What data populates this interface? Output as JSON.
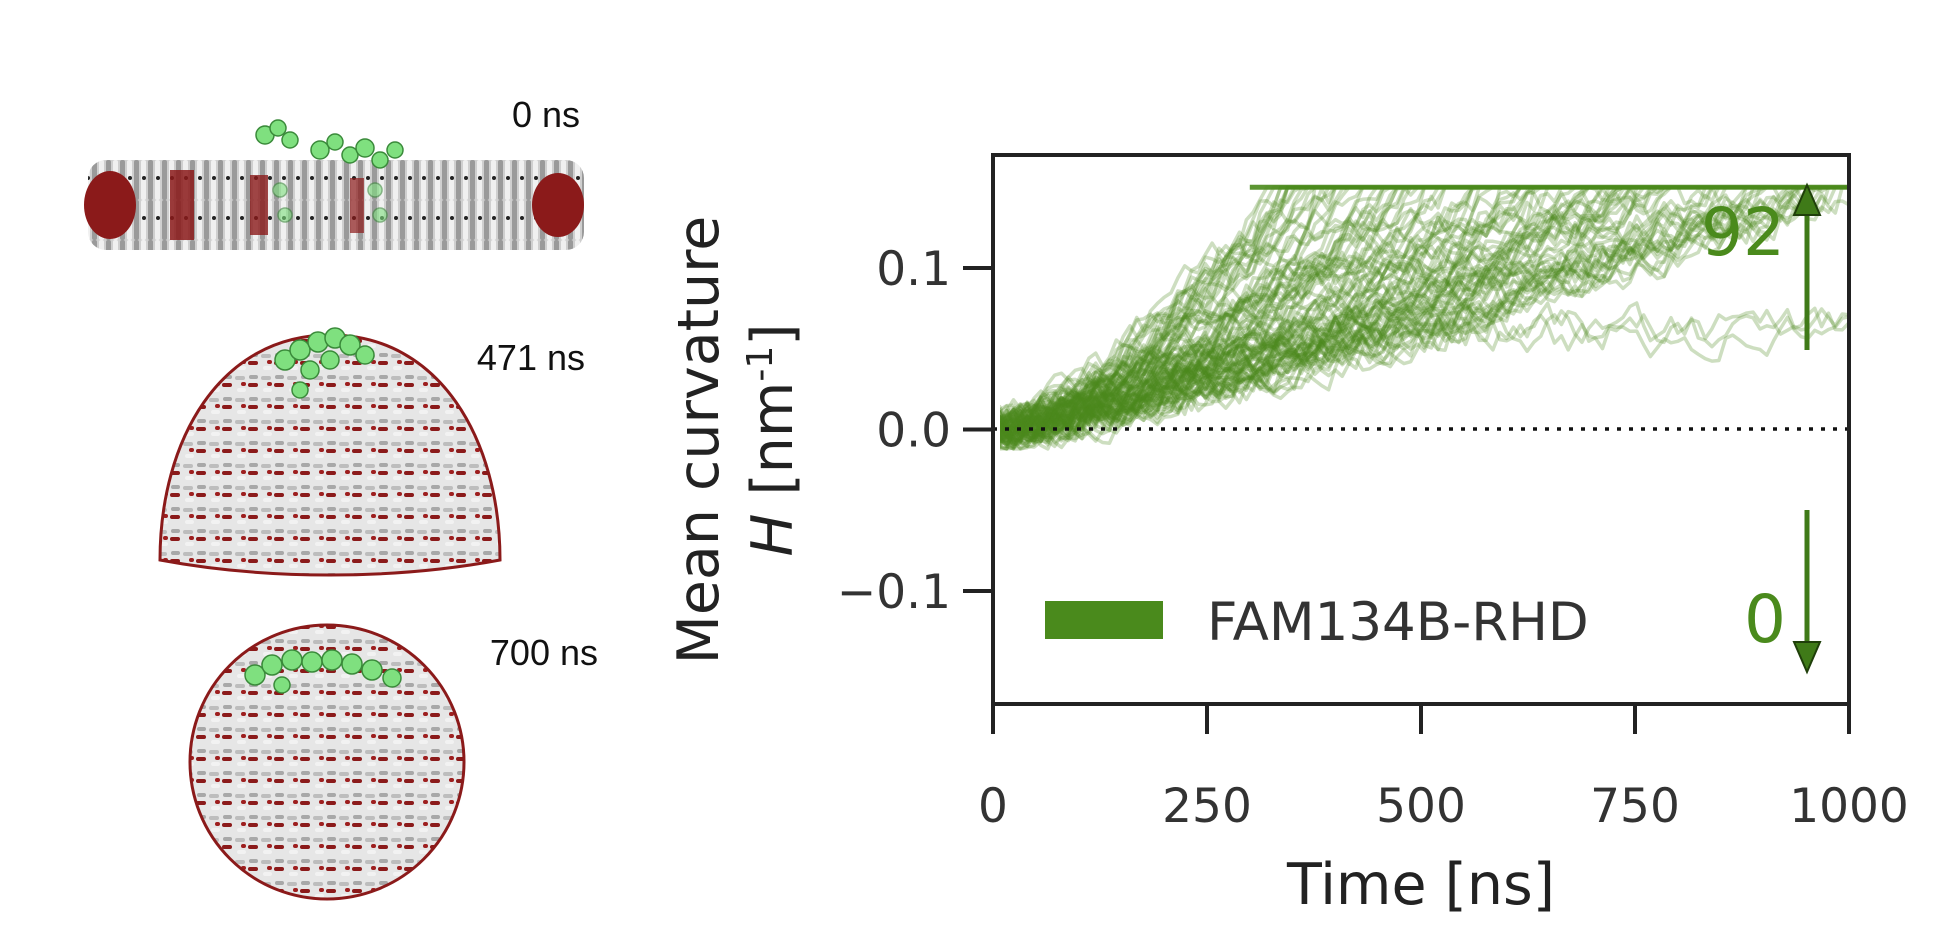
{
  "panel": {
    "snapshots": [
      {
        "time_label": "0 ns",
        "shape": "flat-bilayer"
      },
      {
        "time_label": "471 ns",
        "shape": "dome"
      },
      {
        "time_label": "700 ns",
        "shape": "vesicle"
      }
    ]
  },
  "colors": {
    "series": "#4a8a1c",
    "lipid_light": "#d9d9d9",
    "lipid_dark": "#8b1a1a",
    "protein": "#7fe07f",
    "axis": "#222222"
  },
  "chart_data": {
    "type": "line",
    "xlabel": "Time [ns]",
    "ylabel_line1": "Mean curvature",
    "ylabel_symbol": "H",
    "ylabel_unit_base": " [nm",
    "ylabel_unit_exp": "-1",
    "ylabel_unit_close": "]",
    "xlim": [
      0,
      1000
    ],
    "ylim": [
      -0.17,
      0.17
    ],
    "xticks": [
      "0",
      "250",
      "500",
      "750",
      "1000"
    ],
    "yticks": [
      "0.1",
      "0.0",
      "−0.1"
    ],
    "reference_line": {
      "y": 0.0,
      "style": "dotted"
    },
    "series": [
      {
        "name": "FAM134B-RHD",
        "n_trajectories": 92,
        "trajectories_description": "many translucent trajectories starting at 0 and rising to a plateau of 0.15",
        "plateau": 0.15,
        "approx_trajectory_points": [
          [
            [
              0,
              0
            ],
            [
              150,
              0.04
            ],
            [
              250,
              0.09
            ],
            [
              300,
              0.13
            ],
            [
              330,
              0.15
            ],
            [
              1000,
              0.15
            ]
          ],
          [
            [
              0,
              0
            ],
            [
              200,
              0.05
            ],
            [
              350,
              0.1
            ],
            [
              450,
              0.15
            ],
            [
              1000,
              0.15
            ]
          ],
          [
            [
              0,
              0
            ],
            [
              250,
              0.06
            ],
            [
              450,
              0.09
            ],
            [
              600,
              0.15
            ],
            [
              1000,
              0.15
            ]
          ],
          [
            [
              0,
              0
            ],
            [
              300,
              0.05
            ],
            [
              550,
              0.08
            ],
            [
              750,
              0.15
            ],
            [
              1000,
              0.15
            ]
          ],
          [
            [
              0,
              0
            ],
            [
              400,
              0.04
            ],
            [
              700,
              0.07
            ],
            [
              850,
              0.15
            ],
            [
              1000,
              0.15
            ]
          ],
          [
            [
              0,
              0
            ],
            [
              500,
              0.03
            ],
            [
              800,
              0.05
            ],
            [
              1000,
              0.08
            ]
          ],
          [
            [
              0,
              0
            ],
            [
              500,
              0.02
            ],
            [
              850,
              0.04
            ],
            [
              1000,
              0.015
            ]
          ]
        ]
      }
    ],
    "legend": {
      "label": "FAM134B-RHD",
      "position": "lower-left"
    },
    "annotations": {
      "count_up": "92",
      "count_down": "0"
    }
  }
}
